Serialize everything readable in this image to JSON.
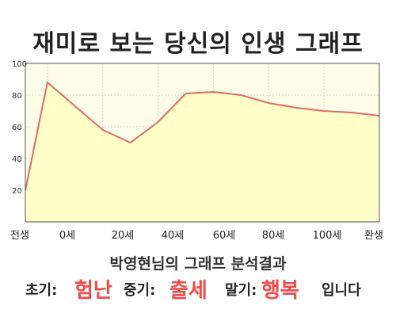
{
  "title": "재미로 보는 당신의 인생 그래프",
  "chart_data": {
    "type": "area",
    "x": [
      -8,
      0,
      20,
      30,
      40,
      50,
      60,
      70,
      80,
      90,
      100,
      110,
      120
    ],
    "values": [
      20,
      88,
      58,
      50,
      63,
      81,
      82,
      80,
      75,
      72,
      70,
      69,
      67
    ],
    "x_ticks": [
      "전생",
      "0세",
      "20세",
      "40세",
      "60세",
      "80세",
      "100세",
      "환생"
    ],
    "ylim": [
      0,
      100
    ],
    "y_ticks": [
      20,
      40,
      60,
      80,
      100
    ],
    "grid": true,
    "line_color": "#e06a6a",
    "fill_color": "#ffffc8",
    "background_color": "#fdfde8"
  },
  "summary": {
    "heading": "박영현님의 그래프 분석결과",
    "early_label": "초기:",
    "early_value": "험난",
    "middle_label": "중기:",
    "middle_value": "출세",
    "late_label": "말기:",
    "late_value": "행복",
    "ending": "입니다"
  },
  "colors": {
    "highlight": "#ef4b4b"
  }
}
